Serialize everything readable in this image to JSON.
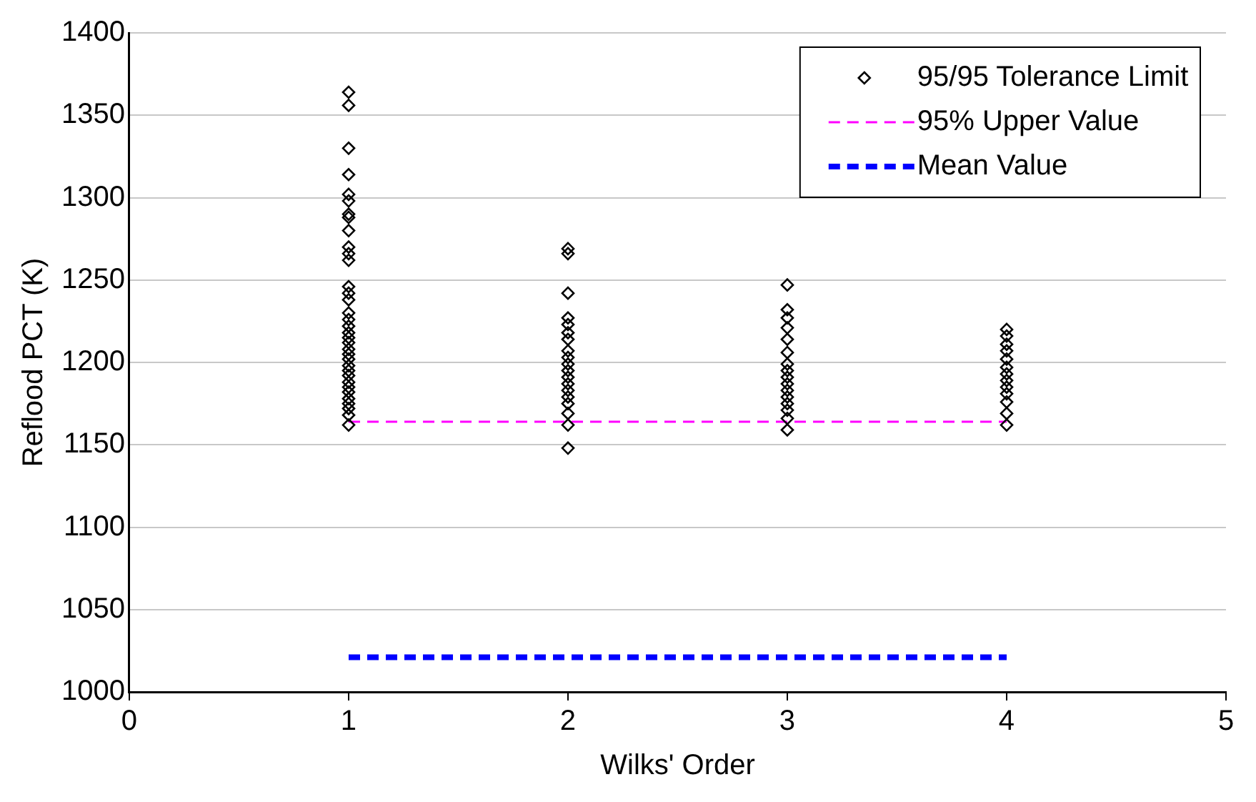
{
  "chart_data": {
    "type": "scatter",
    "xlabel": "Wilks' Order",
    "ylabel": "Reflood PCT (K)",
    "xlim": [
      0,
      5
    ],
    "xticks": [
      0,
      1,
      2,
      3,
      4,
      5
    ],
    "ylim": [
      1000,
      1400
    ],
    "yticks": [
      1000,
      1050,
      1100,
      1150,
      1200,
      1250,
      1300,
      1350,
      1400
    ],
    "grid": "y",
    "legend": "top right",
    "marker": "diamond",
    "series": [
      {
        "name": "95/95 Tolerance Limit",
        "color": "#000000",
        "x": [
          1,
          1,
          1,
          1,
          1,
          1,
          1,
          1,
          1,
          1,
          1,
          1,
          1,
          1,
          1,
          1,
          1,
          1,
          1,
          1,
          1,
          1,
          1,
          1,
          1,
          1,
          1,
          1,
          1,
          1,
          1,
          1,
          1,
          1,
          1,
          2,
          2,
          2,
          2,
          2,
          2,
          2,
          2,
          2,
          2,
          2,
          2,
          2,
          2,
          2,
          2,
          2,
          2,
          2,
          3,
          3,
          3,
          3,
          3,
          3,
          3,
          3,
          3,
          3,
          3,
          3,
          3,
          3,
          3,
          3,
          4,
          4,
          4,
          4,
          4,
          4,
          4,
          4,
          4,
          4,
          4,
          4,
          4
        ],
        "values": [
          1364,
          1356,
          1330,
          1314,
          1302,
          1298,
          1290,
          1288,
          1280,
          1270,
          1266,
          1262,
          1246,
          1242,
          1238,
          1230,
          1226,
          1222,
          1218,
          1215,
          1212,
          1208,
          1205,
          1202,
          1198,
          1195,
          1192,
          1188,
          1185,
          1182,
          1178,
          1175,
          1172,
          1168,
          1162,
          1269,
          1266,
          1242,
          1227,
          1223,
          1218,
          1214,
          1207,
          1203,
          1199,
          1195,
          1191,
          1187,
          1183,
          1179,
          1175,
          1169,
          1162,
          1148,
          1247,
          1232,
          1227,
          1221,
          1214,
          1206,
          1199,
          1195,
          1191,
          1187,
          1183,
          1179,
          1175,
          1171,
          1166,
          1159,
          1220,
          1216,
          1211,
          1207,
          1202,
          1197,
          1193,
          1189,
          1185,
          1181,
          1176,
          1169,
          1162
        ]
      },
      {
        "name": "95% Upper Value",
        "type": "line",
        "color": "#ff00ff",
        "line_style": "dashed",
        "marker": "none",
        "x": [
          1,
          4
        ],
        "values": [
          1164,
          1164
        ]
      },
      {
        "name": "Mean Value",
        "type": "line",
        "color": "#0000ff",
        "line_style": "dashed",
        "marker": "none",
        "x": [
          1,
          4
        ],
        "values": [
          1021,
          1021
        ]
      }
    ]
  }
}
